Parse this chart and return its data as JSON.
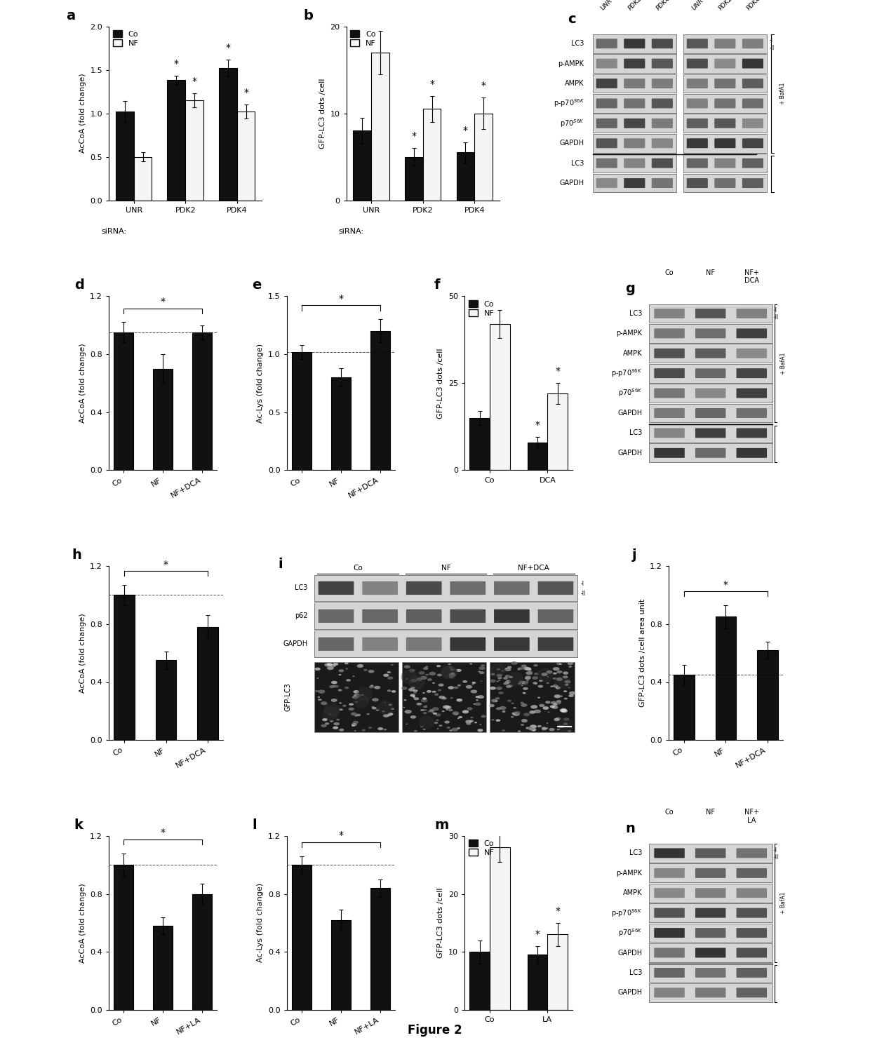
{
  "panel_a": {
    "ylabel": "AcCoA (fold change)",
    "xlabel": "siRNA:",
    "xtick_labels": [
      "UNR",
      "PDK2",
      "PDK4"
    ],
    "co_values": [
      1.02,
      1.38,
      1.52
    ],
    "nf_values": [
      0.5,
      1.15,
      1.02
    ],
    "co_errors": [
      0.12,
      0.05,
      0.1
    ],
    "nf_errors": [
      0.05,
      0.08,
      0.08
    ],
    "ylim": [
      0,
      2.0
    ],
    "yticks": [
      0,
      0.5,
      1.0,
      1.5,
      2.0
    ],
    "sig_co": [
      false,
      true,
      true
    ],
    "sig_nf": [
      false,
      true,
      true
    ]
  },
  "panel_b": {
    "ylabel": "GFP-LC3 dots /cell",
    "xlabel": "siRNA:",
    "xtick_labels": [
      "UNR",
      "PDK2",
      "PDK4"
    ],
    "co_values": [
      8.0,
      5.0,
      5.5
    ],
    "nf_values": [
      17.0,
      10.5,
      10.0
    ],
    "co_errors": [
      1.5,
      1.0,
      1.2
    ],
    "nf_errors": [
      2.5,
      1.5,
      1.8
    ],
    "ylim": [
      0,
      20
    ],
    "yticks": [
      0,
      10,
      20
    ],
    "sig_co": [
      false,
      true,
      true
    ],
    "sig_nf": [
      false,
      true,
      true
    ]
  },
  "panel_d": {
    "ylabel": "AcCoA (fold change)",
    "xtick_labels": [
      "Co",
      "NF",
      "NF+DCA"
    ],
    "values": [
      0.95,
      0.7,
      0.95
    ],
    "errors": [
      0.07,
      0.1,
      0.05
    ],
    "ylim": [
      0,
      1.2
    ],
    "yticks": [
      0,
      0.4,
      0.8,
      1.2
    ],
    "sig_bracket": [
      0,
      2
    ],
    "dashed_line": 0.95
  },
  "panel_e": {
    "ylabel": "Ac-Lys (fold change)",
    "xtick_labels": [
      "Co",
      "NF",
      "NF+DCA"
    ],
    "values": [
      1.02,
      0.8,
      1.2
    ],
    "errors": [
      0.06,
      0.08,
      0.1
    ],
    "ylim": [
      0,
      1.5
    ],
    "yticks": [
      0,
      0.5,
      1.0,
      1.5
    ],
    "sig_bracket": [
      0,
      2
    ],
    "dashed_line": 1.02
  },
  "panel_f": {
    "ylabel": "GFP-LC3 dots /cell",
    "xtick_labels": [
      "Co",
      "DCA"
    ],
    "co_values": [
      15.0,
      8.0
    ],
    "nf_values": [
      42.0,
      22.0
    ],
    "co_errors": [
      2.0,
      1.5
    ],
    "nf_errors": [
      4.0,
      3.0
    ],
    "ylim": [
      0,
      50
    ],
    "yticks": [
      0,
      25,
      50
    ],
    "sig_co": [
      false,
      true
    ],
    "sig_nf": [
      false,
      true
    ]
  },
  "panel_h": {
    "ylabel": "AcCoA (fold change)",
    "xtick_labels": [
      "Co",
      "NF",
      "NF+DCA"
    ],
    "values": [
      1.0,
      0.55,
      0.78
    ],
    "errors": [
      0.07,
      0.06,
      0.08
    ],
    "ylim": [
      0,
      1.2
    ],
    "yticks": [
      0,
      0.4,
      0.8,
      1.2
    ],
    "sig_bracket": [
      0,
      2
    ],
    "dashed_line": 1.0
  },
  "panel_j": {
    "ylabel": "GFP-LC3 dots /cell area unit",
    "xtick_labels": [
      "Co",
      "NF",
      "NF+DCA"
    ],
    "values": [
      0.45,
      0.85,
      0.62
    ],
    "errors": [
      0.07,
      0.08,
      0.06
    ],
    "ylim": [
      0,
      1.2
    ],
    "yticks": [
      0,
      0.4,
      0.8,
      1.2
    ],
    "sig_bracket": [
      0,
      2
    ],
    "dashed_line": 0.45
  },
  "panel_k": {
    "ylabel": "AcCoA (fold change)",
    "xtick_labels": [
      "Co",
      "NF",
      "NF+LA"
    ],
    "values": [
      1.0,
      0.58,
      0.8
    ],
    "errors": [
      0.08,
      0.06,
      0.07
    ],
    "ylim": [
      0,
      1.2
    ],
    "yticks": [
      0,
      0.4,
      0.8,
      1.2
    ],
    "sig_bracket": [
      0,
      2
    ],
    "dashed_line": 1.0
  },
  "panel_l": {
    "ylabel": "Ac-Lys (fold change)",
    "xtick_labels": [
      "Co",
      "NF",
      "NF+LA"
    ],
    "values": [
      1.0,
      0.62,
      0.84
    ],
    "errors": [
      0.06,
      0.07,
      0.06
    ],
    "ylim": [
      0,
      1.2
    ],
    "yticks": [
      0,
      0.4,
      0.8,
      1.2
    ],
    "sig_bracket": [
      0,
      2
    ],
    "dashed_line": 1.0
  },
  "panel_m": {
    "ylabel": "GFP-LC3 dots /cell",
    "xtick_labels": [
      "Co",
      "LA"
    ],
    "co_values": [
      10.0,
      9.5
    ],
    "nf_values": [
      28.0,
      13.0
    ],
    "co_errors": [
      2.0,
      1.5
    ],
    "nf_errors": [
      2.5,
      2.0
    ],
    "ylim": [
      0,
      30
    ],
    "yticks": [
      0,
      10,
      20,
      30
    ],
    "sig_co": [
      false,
      true
    ],
    "sig_nf": [
      false,
      true
    ]
  },
  "colors": {
    "co_bar": "#111111",
    "nf_bar": "#f5f5f5",
    "bar_edge": "#000000"
  },
  "figure_title": "Figure 2"
}
